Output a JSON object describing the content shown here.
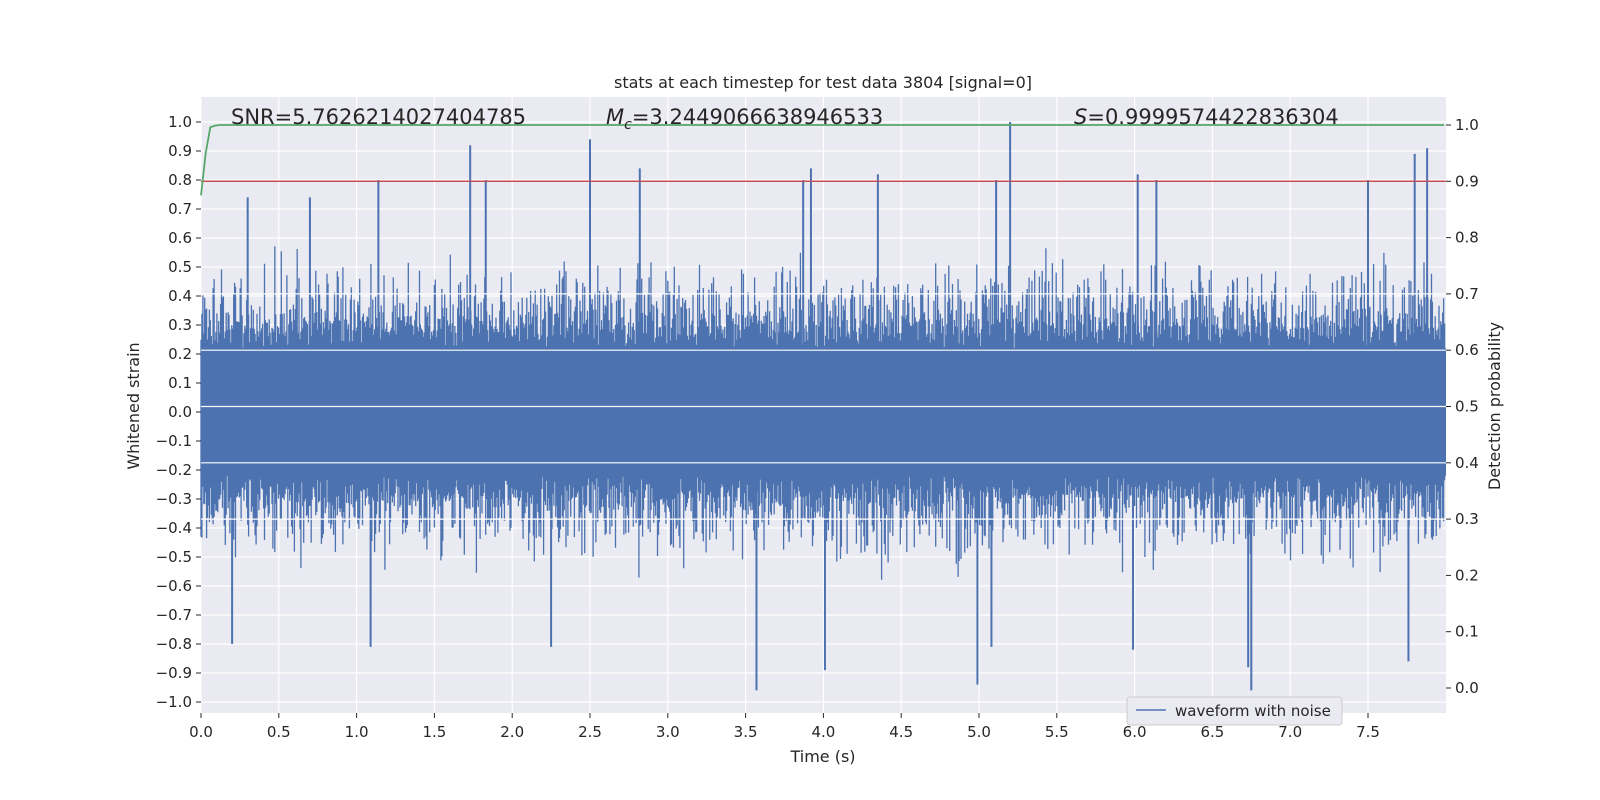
{
  "chart_data": {
    "type": "line",
    "title": "stats at each timestep for test data 3804 [signal=0]",
    "xlabel": "Time (s)",
    "ylabel": "Whitened strain",
    "y2label": "Detection probability",
    "xlim": [
      0.0,
      8.0
    ],
    "ylim": [
      -1.05,
      1.05
    ],
    "y2lim": [
      -0.045,
      1.045
    ],
    "xticks": [
      "0.0",
      "0.5",
      "1.0",
      "1.5",
      "2.0",
      "2.5",
      "3.0",
      "3.5",
      "4.0",
      "4.5",
      "5.0",
      "5.5",
      "6.0",
      "6.5",
      "7.0",
      "7.5"
    ],
    "yticks": [
      "1.0",
      "0.9",
      "0.8",
      "0.7",
      "0.6",
      "0.5",
      "0.4",
      "0.3",
      "0.2",
      "0.1",
      "0.0",
      "-0.1",
      "-0.2",
      "-0.3",
      "-0.4",
      "-0.5",
      "-0.6",
      "-0.7",
      "-0.8",
      "-0.9",
      "-1.0"
    ],
    "y2ticks": [
      "1.0",
      "0.9",
      "0.8",
      "0.7",
      "0.6",
      "0.5",
      "0.4",
      "0.3",
      "0.2",
      "0.1",
      "0.0"
    ],
    "annotations": {
      "snr": "SNR=5.7626214027404785",
      "mc_symbol": "M",
      "mc_sub": "c",
      "mc_value": "=3.2449066638946533",
      "s_symbol": "S",
      "s_value": "=0.9999574422836304"
    },
    "legend": {
      "label": "waveform with noise",
      "location": "lower-right"
    },
    "colors": {
      "waveform": "#4c72b0",
      "probability": "#55a868",
      "threshold": "#c44e52",
      "axes_bg": "#eaeaf2",
      "grid": "#ffffff"
    },
    "series": [
      {
        "name": "waveform with noise",
        "axis": "left",
        "description": "noise-dominated whitened strain, dense band roughly within ±0.4 with sparse spikes",
        "envelope_upper": 0.4,
        "envelope_lower": -0.4,
        "spikes": [
          {
            "x": 0.3,
            "y": 0.74
          },
          {
            "x": 0.7,
            "y": 0.74
          },
          {
            "x": 1.14,
            "y": 0.8
          },
          {
            "x": 1.73,
            "y": 0.92
          },
          {
            "x": 1.83,
            "y": 0.8
          },
          {
            "x": 2.5,
            "y": 0.94
          },
          {
            "x": 2.82,
            "y": 0.84
          },
          {
            "x": 3.87,
            "y": 0.8
          },
          {
            "x": 3.92,
            "y": 0.84
          },
          {
            "x": 4.35,
            "y": 0.82
          },
          {
            "x": 5.11,
            "y": 0.8
          },
          {
            "x": 5.2,
            "y": 1.0
          },
          {
            "x": 6.02,
            "y": 0.82
          },
          {
            "x": 6.14,
            "y": 0.8
          },
          {
            "x": 7.5,
            "y": 0.8
          },
          {
            "x": 7.8,
            "y": 0.89
          },
          {
            "x": 7.88,
            "y": 0.91
          },
          {
            "x": 0.2,
            "y": -0.8
          },
          {
            "x": 1.09,
            "y": -0.81
          },
          {
            "x": 2.25,
            "y": -0.81
          },
          {
            "x": 3.57,
            "y": -0.96
          },
          {
            "x": 4.01,
            "y": -0.89
          },
          {
            "x": 4.99,
            "y": -0.94
          },
          {
            "x": 5.08,
            "y": -0.81
          },
          {
            "x": 5.99,
            "y": -0.82
          },
          {
            "x": 6.73,
            "y": -0.88
          },
          {
            "x": 6.75,
            "y": -0.96
          },
          {
            "x": 7.76,
            "y": -0.86
          }
        ]
      },
      {
        "name": "detection probability",
        "axis": "right",
        "x": [
          0.0,
          0.03,
          0.06,
          0.09,
          0.12,
          0.5,
          1.0,
          2.0,
          3.0,
          4.0,
          5.0,
          6.0,
          7.0,
          7.99
        ],
        "values": [
          0.875,
          0.95,
          0.996,
          0.999,
          1.0,
          1.0,
          1.0,
          1.0,
          1.0,
          1.0,
          1.0,
          1.0,
          1.0,
          1.0
        ]
      },
      {
        "name": "threshold",
        "axis": "right",
        "x": [
          0.0,
          8.0
        ],
        "values": [
          0.9,
          0.9
        ]
      }
    ]
  }
}
